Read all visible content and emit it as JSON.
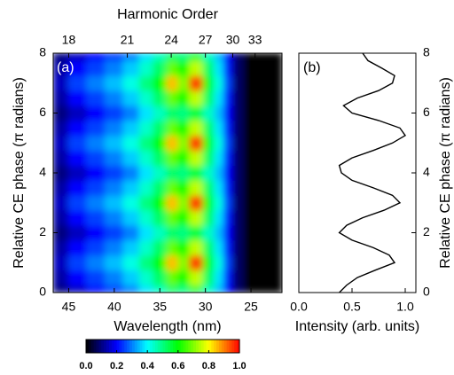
{
  "chart_data": [
    {
      "type": "heatmap",
      "panel_label": "(a)",
      "xlabel": "Wavelength (nm)",
      "ylabel": "Relative CE phase (π radians)",
      "x2label": "Harmonic Order",
      "xlim": [
        46.7,
        21.6
      ],
      "xticks": [
        45,
        40,
        35,
        30,
        25
      ],
      "x2ticks": [
        {
          "value": 45,
          "label": "18"
        },
        {
          "value": 38.57,
          "label": "21"
        },
        {
          "value": 33.75,
          "label": "24"
        },
        {
          "value": 30,
          "label": "27"
        },
        {
          "value": 27,
          "label": "30"
        },
        {
          "value": 24.55,
          "label": "33"
        }
      ],
      "ylim": [
        0,
        8
      ],
      "yticks": [
        0,
        2,
        4,
        6,
        8
      ],
      "x": [
        46,
        44,
        42,
        40,
        38,
        36.5,
        35,
        33.5,
        32.5,
        31,
        29.5,
        28.5,
        27.5,
        26.5,
        25,
        22.5
      ],
      "y": [
        0,
        0.5,
        1,
        1.5,
        2,
        2.5,
        3,
        3.5,
        4,
        4.5,
        5,
        5.5,
        6,
        6.5,
        7,
        7.5,
        8
      ],
      "z": [
        [
          0.1,
          0.15,
          0.2,
          0.25,
          0.3,
          0.38,
          0.45,
          0.52,
          0.5,
          0.55,
          0.45,
          0.35,
          0.2,
          0.08,
          0,
          0
        ],
        [
          0.13,
          0.2,
          0.25,
          0.3,
          0.36,
          0.44,
          0.52,
          0.68,
          0.6,
          0.75,
          0.52,
          0.38,
          0.22,
          0.08,
          0,
          0
        ],
        [
          0.15,
          0.25,
          0.3,
          0.35,
          0.42,
          0.5,
          0.6,
          0.85,
          0.7,
          0.95,
          0.58,
          0.42,
          0.25,
          0.08,
          0,
          0
        ],
        [
          0.13,
          0.2,
          0.25,
          0.3,
          0.36,
          0.44,
          0.52,
          0.68,
          0.6,
          0.75,
          0.52,
          0.38,
          0.22,
          0.08,
          0,
          0
        ],
        [
          0.1,
          0.15,
          0.2,
          0.25,
          0.3,
          0.38,
          0.45,
          0.52,
          0.5,
          0.55,
          0.45,
          0.35,
          0.2,
          0.08,
          0,
          0
        ],
        [
          0.13,
          0.2,
          0.25,
          0.3,
          0.36,
          0.44,
          0.52,
          0.68,
          0.6,
          0.75,
          0.52,
          0.38,
          0.22,
          0.08,
          0,
          0
        ],
        [
          0.15,
          0.25,
          0.3,
          0.35,
          0.42,
          0.5,
          0.6,
          0.85,
          0.7,
          0.95,
          0.58,
          0.42,
          0.25,
          0.08,
          0,
          0
        ],
        [
          0.13,
          0.2,
          0.25,
          0.3,
          0.36,
          0.44,
          0.52,
          0.68,
          0.6,
          0.75,
          0.52,
          0.38,
          0.22,
          0.08,
          0,
          0
        ],
        [
          0.1,
          0.15,
          0.2,
          0.25,
          0.3,
          0.38,
          0.45,
          0.52,
          0.5,
          0.55,
          0.45,
          0.35,
          0.2,
          0.08,
          0,
          0
        ],
        [
          0.13,
          0.2,
          0.25,
          0.3,
          0.36,
          0.44,
          0.52,
          0.68,
          0.6,
          0.75,
          0.52,
          0.38,
          0.22,
          0.08,
          0,
          0
        ],
        [
          0.15,
          0.25,
          0.3,
          0.35,
          0.42,
          0.5,
          0.6,
          0.85,
          0.7,
          0.95,
          0.58,
          0.42,
          0.25,
          0.08,
          0,
          0
        ],
        [
          0.13,
          0.2,
          0.25,
          0.3,
          0.36,
          0.44,
          0.52,
          0.68,
          0.6,
          0.75,
          0.52,
          0.38,
          0.22,
          0.08,
          0,
          0
        ],
        [
          0.1,
          0.15,
          0.2,
          0.25,
          0.3,
          0.38,
          0.45,
          0.52,
          0.5,
          0.55,
          0.45,
          0.35,
          0.2,
          0.08,
          0,
          0
        ],
        [
          0.13,
          0.2,
          0.25,
          0.3,
          0.36,
          0.44,
          0.52,
          0.68,
          0.6,
          0.75,
          0.52,
          0.38,
          0.22,
          0.08,
          0,
          0
        ],
        [
          0.15,
          0.25,
          0.3,
          0.35,
          0.42,
          0.5,
          0.6,
          0.85,
          0.7,
          0.95,
          0.58,
          0.42,
          0.25,
          0.08,
          0,
          0
        ],
        [
          0.13,
          0.2,
          0.25,
          0.3,
          0.36,
          0.44,
          0.52,
          0.68,
          0.6,
          0.75,
          0.52,
          0.38,
          0.22,
          0.08,
          0,
          0
        ],
        [
          0.1,
          0.15,
          0.2,
          0.25,
          0.3,
          0.38,
          0.45,
          0.52,
          0.5,
          0.55,
          0.45,
          0.35,
          0.2,
          0.08,
          0,
          0
        ]
      ],
      "colormap": [
        "#000000",
        "#0000ff",
        "#00ffff",
        "#00ff00",
        "#ffff00",
        "#ff0000"
      ],
      "colorbar": {
        "lim": [
          0,
          1
        ],
        "ticks": [
          {
            "value": 0,
            "label": "0.0"
          },
          0.2,
          0.4,
          0.6,
          0.8,
          {
            "value": 1,
            "label": "1.0"
          }
        ]
      }
    },
    {
      "type": "line",
      "panel_label": "(b)",
      "color": "#000000",
      "xlabel": "Intensity (arb. units)",
      "ylabel": "Relative CE phase (π radians)",
      "xlim": [
        0,
        1.1
      ],
      "xticks": [
        {
          "value": 0,
          "label": "0.0"
        },
        0.5,
        {
          "value": 1,
          "label": "1.0"
        }
      ],
      "ylim": [
        0,
        8
      ],
      "yticks": [
        0,
        2,
        4,
        6,
        8
      ],
      "y": [
        0,
        0.25,
        0.5,
        0.75,
        1,
        1.25,
        1.5,
        1.75,
        2,
        2.25,
        2.5,
        2.75,
        3,
        3.25,
        3.5,
        3.75,
        4,
        4.25,
        4.5,
        4.75,
        5,
        5.25,
        5.5,
        5.75,
        6,
        6.25,
        6.5,
        6.75,
        7,
        7.25,
        7.5,
        7.75,
        8
      ],
      "values": [
        0.38,
        0.45,
        0.55,
        0.72,
        0.9,
        0.85,
        0.7,
        0.5,
        0.38,
        0.45,
        0.6,
        0.8,
        0.95,
        0.88,
        0.7,
        0.5,
        0.4,
        0.38,
        0.5,
        0.7,
        0.88,
        1.0,
        0.95,
        0.75,
        0.5,
        0.42,
        0.55,
        0.75,
        0.88,
        0.9,
        0.78,
        0.65,
        0.6
      ]
    }
  ]
}
